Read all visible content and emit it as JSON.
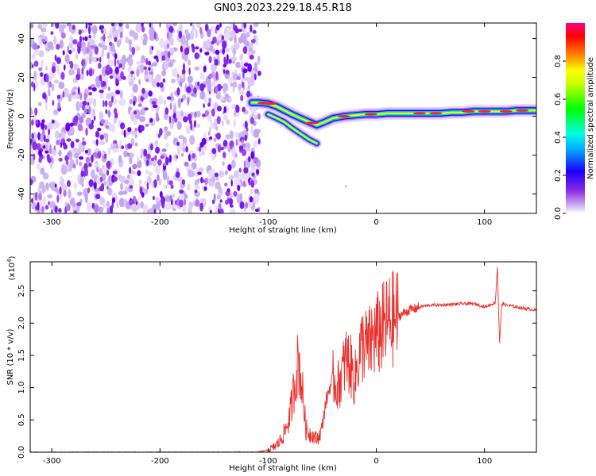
{
  "title": "GN03.2023.229.18.45.R18",
  "chart_data": [
    {
      "type": "heatmap",
      "xlabel": "Height of straight line (km)",
      "ylabel": "Frequency (Hz)",
      "xlim": [
        -320,
        148
      ],
      "ylim": [
        -50,
        48
      ],
      "xticks": [
        -300,
        -200,
        -100,
        0,
        100
      ],
      "yticks": [
        -40,
        -20,
        0,
        20,
        40
      ],
      "colorbar": {
        "label": "Normalized spectral amplitude",
        "range": [
          0,
          1
        ],
        "ticks": [
          "0.0",
          "0.2",
          "0.4",
          "0.6",
          "0.8"
        ],
        "colormap": [
          "#ffffff",
          "#d8c4f5",
          "#7a00ff",
          "#0000ff",
          "#00ffff",
          "#00ff00",
          "#ffff00",
          "#ff0000",
          "#ff0080"
        ]
      },
      "noise_region_x": [
        -320,
        -108
      ],
      "ridge": {
        "x": [
          -115,
          -108,
          -100,
          -92,
          -85,
          -78,
          -70,
          -62,
          -55,
          -48,
          -40,
          -30,
          -20,
          -10,
          0,
          10,
          20,
          30,
          40,
          50,
          60,
          70,
          80,
          90,
          100,
          110,
          120,
          130,
          140,
          148
        ],
        "y": [
          7,
          7,
          6.5,
          5,
          3,
          1,
          -1,
          -3,
          -4.5,
          -3,
          -1,
          0,
          0.5,
          1,
          1,
          1.5,
          1.5,
          1.5,
          1.5,
          1.5,
          1.5,
          2,
          2,
          2.5,
          2.5,
          2.5,
          2.5,
          3,
          3,
          3
        ]
      },
      "branch": {
        "x": [
          -100,
          -92,
          -85,
          -78,
          -70,
          -62,
          -55
        ],
        "y": [
          1,
          -1,
          -3,
          -6,
          -9,
          -12,
          -14
        ]
      }
    },
    {
      "type": "line",
      "xlabel": "Height of straight line (km)",
      "ylabel": "SNR (10 * v/v)",
      "scale_label": "(x10",
      "scale_exp": "4",
      "xlim": [
        -320,
        148
      ],
      "ylim": [
        0,
        2.95
      ],
      "xticks": [
        -300,
        -200,
        -100,
        0,
        100
      ],
      "yticks": [
        "0.0",
        "0.5",
        "1.0",
        "1.5",
        "2.0",
        "2.5"
      ],
      "series": [
        {
          "color": "#e8302a",
          "x": [
            -320,
            -110,
            -100,
            -95,
            -90,
            -85,
            -80,
            -76,
            -72,
            -68,
            -65,
            -62,
            -58,
            -55,
            -52,
            -50,
            -47,
            -44,
            -40,
            -36,
            -32,
            -28,
            -24,
            -20,
            -16,
            -12,
            -8,
            -4,
            0,
            5,
            10,
            15,
            20,
            25,
            30,
            35,
            40,
            50,
            60,
            70,
            80,
            90,
            95,
            100,
            105,
            110,
            112,
            113,
            114,
            116,
            120,
            130,
            140,
            148
          ],
          "y": [
            0.0,
            0.0,
            0.03,
            0.07,
            0.15,
            0.3,
            0.55,
            1.0,
            1.45,
            0.9,
            0.35,
            0.3,
            0.25,
            0.2,
            0.28,
            0.4,
            0.75,
            0.95,
            1.15,
            1.0,
            1.2,
            1.45,
            1.35,
            1.1,
            1.5,
            1.7,
            1.6,
            1.75,
            1.8,
            1.9,
            2.0,
            2.05,
            2.1,
            2.15,
            2.2,
            2.22,
            2.25,
            2.28,
            2.28,
            2.29,
            2.3,
            2.3,
            2.28,
            2.25,
            2.28,
            2.32,
            2.9,
            2.2,
            1.7,
            2.3,
            2.28,
            2.25,
            2.22,
            2.2
          ]
        }
      ]
    }
  ]
}
